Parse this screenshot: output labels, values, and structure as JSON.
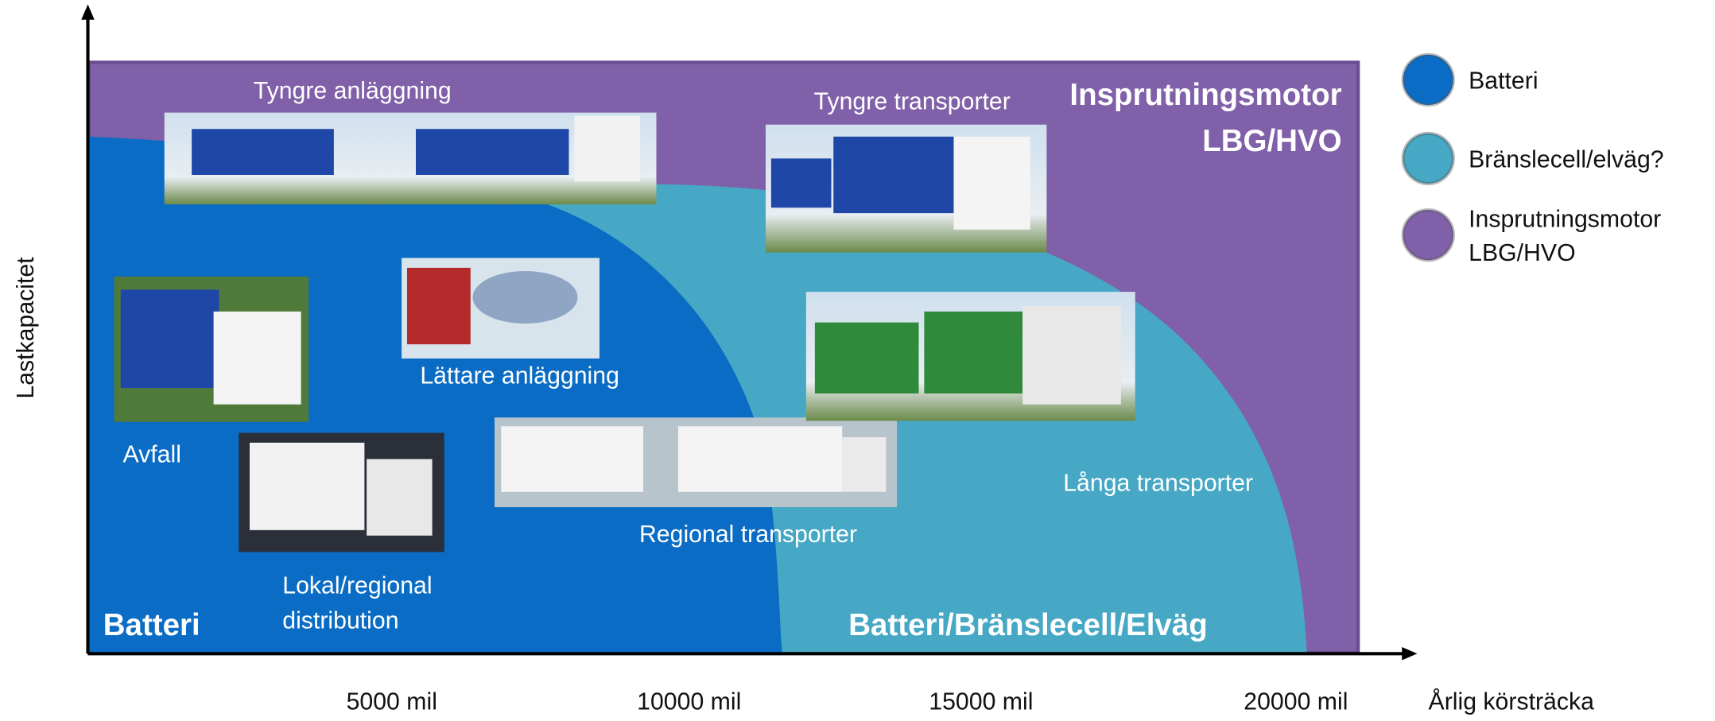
{
  "axes": {
    "y_label": "Lastkapacitet",
    "x_label": "Årlig körsträcka",
    "x_ticks": [
      "5000 mil",
      "10000 mil",
      "15000 mil",
      "20000 mil"
    ]
  },
  "regions": {
    "battery": "Batteri",
    "mixed": "Batteri/Bränslecell/Elväg",
    "combustion": [
      "Insprutningsmotor",
      "LBG/HVO"
    ]
  },
  "segments": {
    "heavy_construction": "Tyngre anläggning",
    "heavy_transport": "Tyngre transporter",
    "light_construction": "Lättare anläggning",
    "waste": "Avfall",
    "local_distribution": [
      "Lokal/regional",
      "distribution"
    ],
    "regional_transport": "Regional transporter",
    "long_transport": "Långa transporter"
  },
  "legend": [
    {
      "label": [
        "Batteri"
      ],
      "color": "#0a6cc4"
    },
    {
      "label": [
        "Bränslecell/elväg?"
      ],
      "color": "#46a8c4"
    },
    {
      "label": [
        "Insprutningsmotor",
        "LBG/HVO"
      ],
      "color": "#8060a8"
    }
  ]
}
